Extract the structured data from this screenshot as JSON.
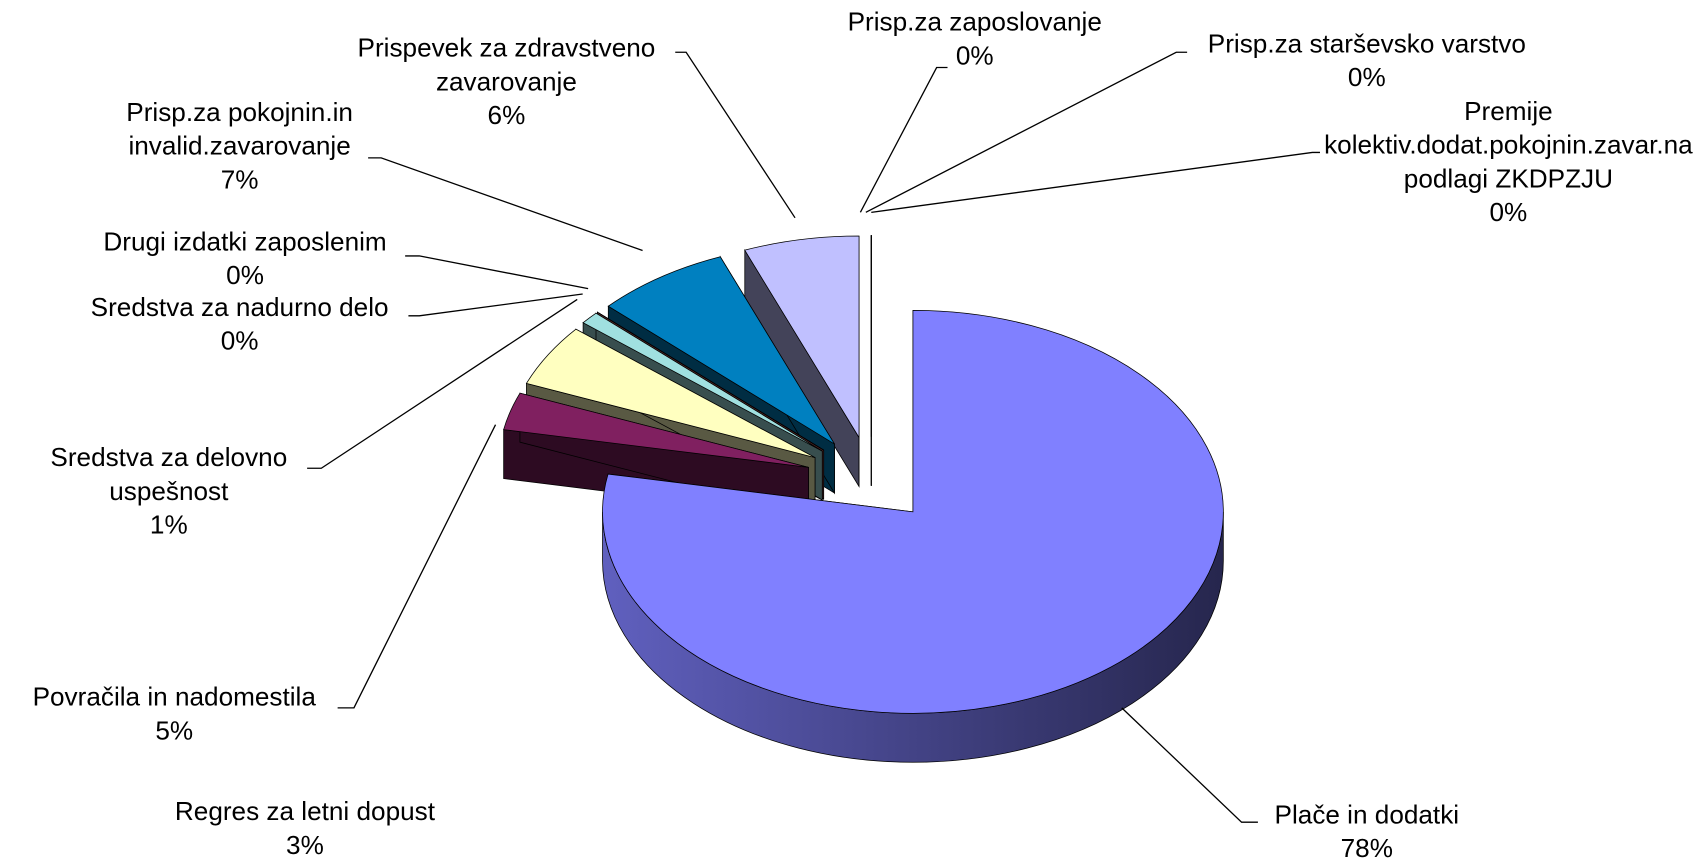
{
  "chart_data": {
    "type": "pie3d",
    "categories": [
      "Plače in dodatki",
      "Regres za letni dopust",
      "Povračila in nadomestila",
      "Sredstva za delovno uspešnost",
      "Sredstva za nadurno delo",
      "Drugi izdatki zaposlenim",
      "Prisp.za pokojnin.in invalid.zavarovanje",
      "Prispevek za zdravstveno zavarovanje",
      "Prisp.za zaposlovanje",
      "Prisp.za starševsko varstvo",
      "Premije kolektiv.dodat.pokojnin.zavar.na podlagi ZKDPZJU"
    ],
    "values": [
      78,
      3,
      5,
      1,
      0,
      0,
      7,
      6,
      0,
      0,
      0
    ],
    "value_labels": [
      "78%",
      "3%",
      "5%",
      "1%",
      "0%",
      "0%",
      "7%",
      "6%",
      "0%",
      "0%",
      "0%"
    ],
    "colors": [
      "#8080ff",
      "#802060",
      "#ffffc0",
      "#a0e0e0",
      "#ffffff",
      "#ff8080",
      "#0080c0",
      "#c0c0ff",
      "#ffff00",
      "#000080",
      "#ffff00"
    ]
  }
}
